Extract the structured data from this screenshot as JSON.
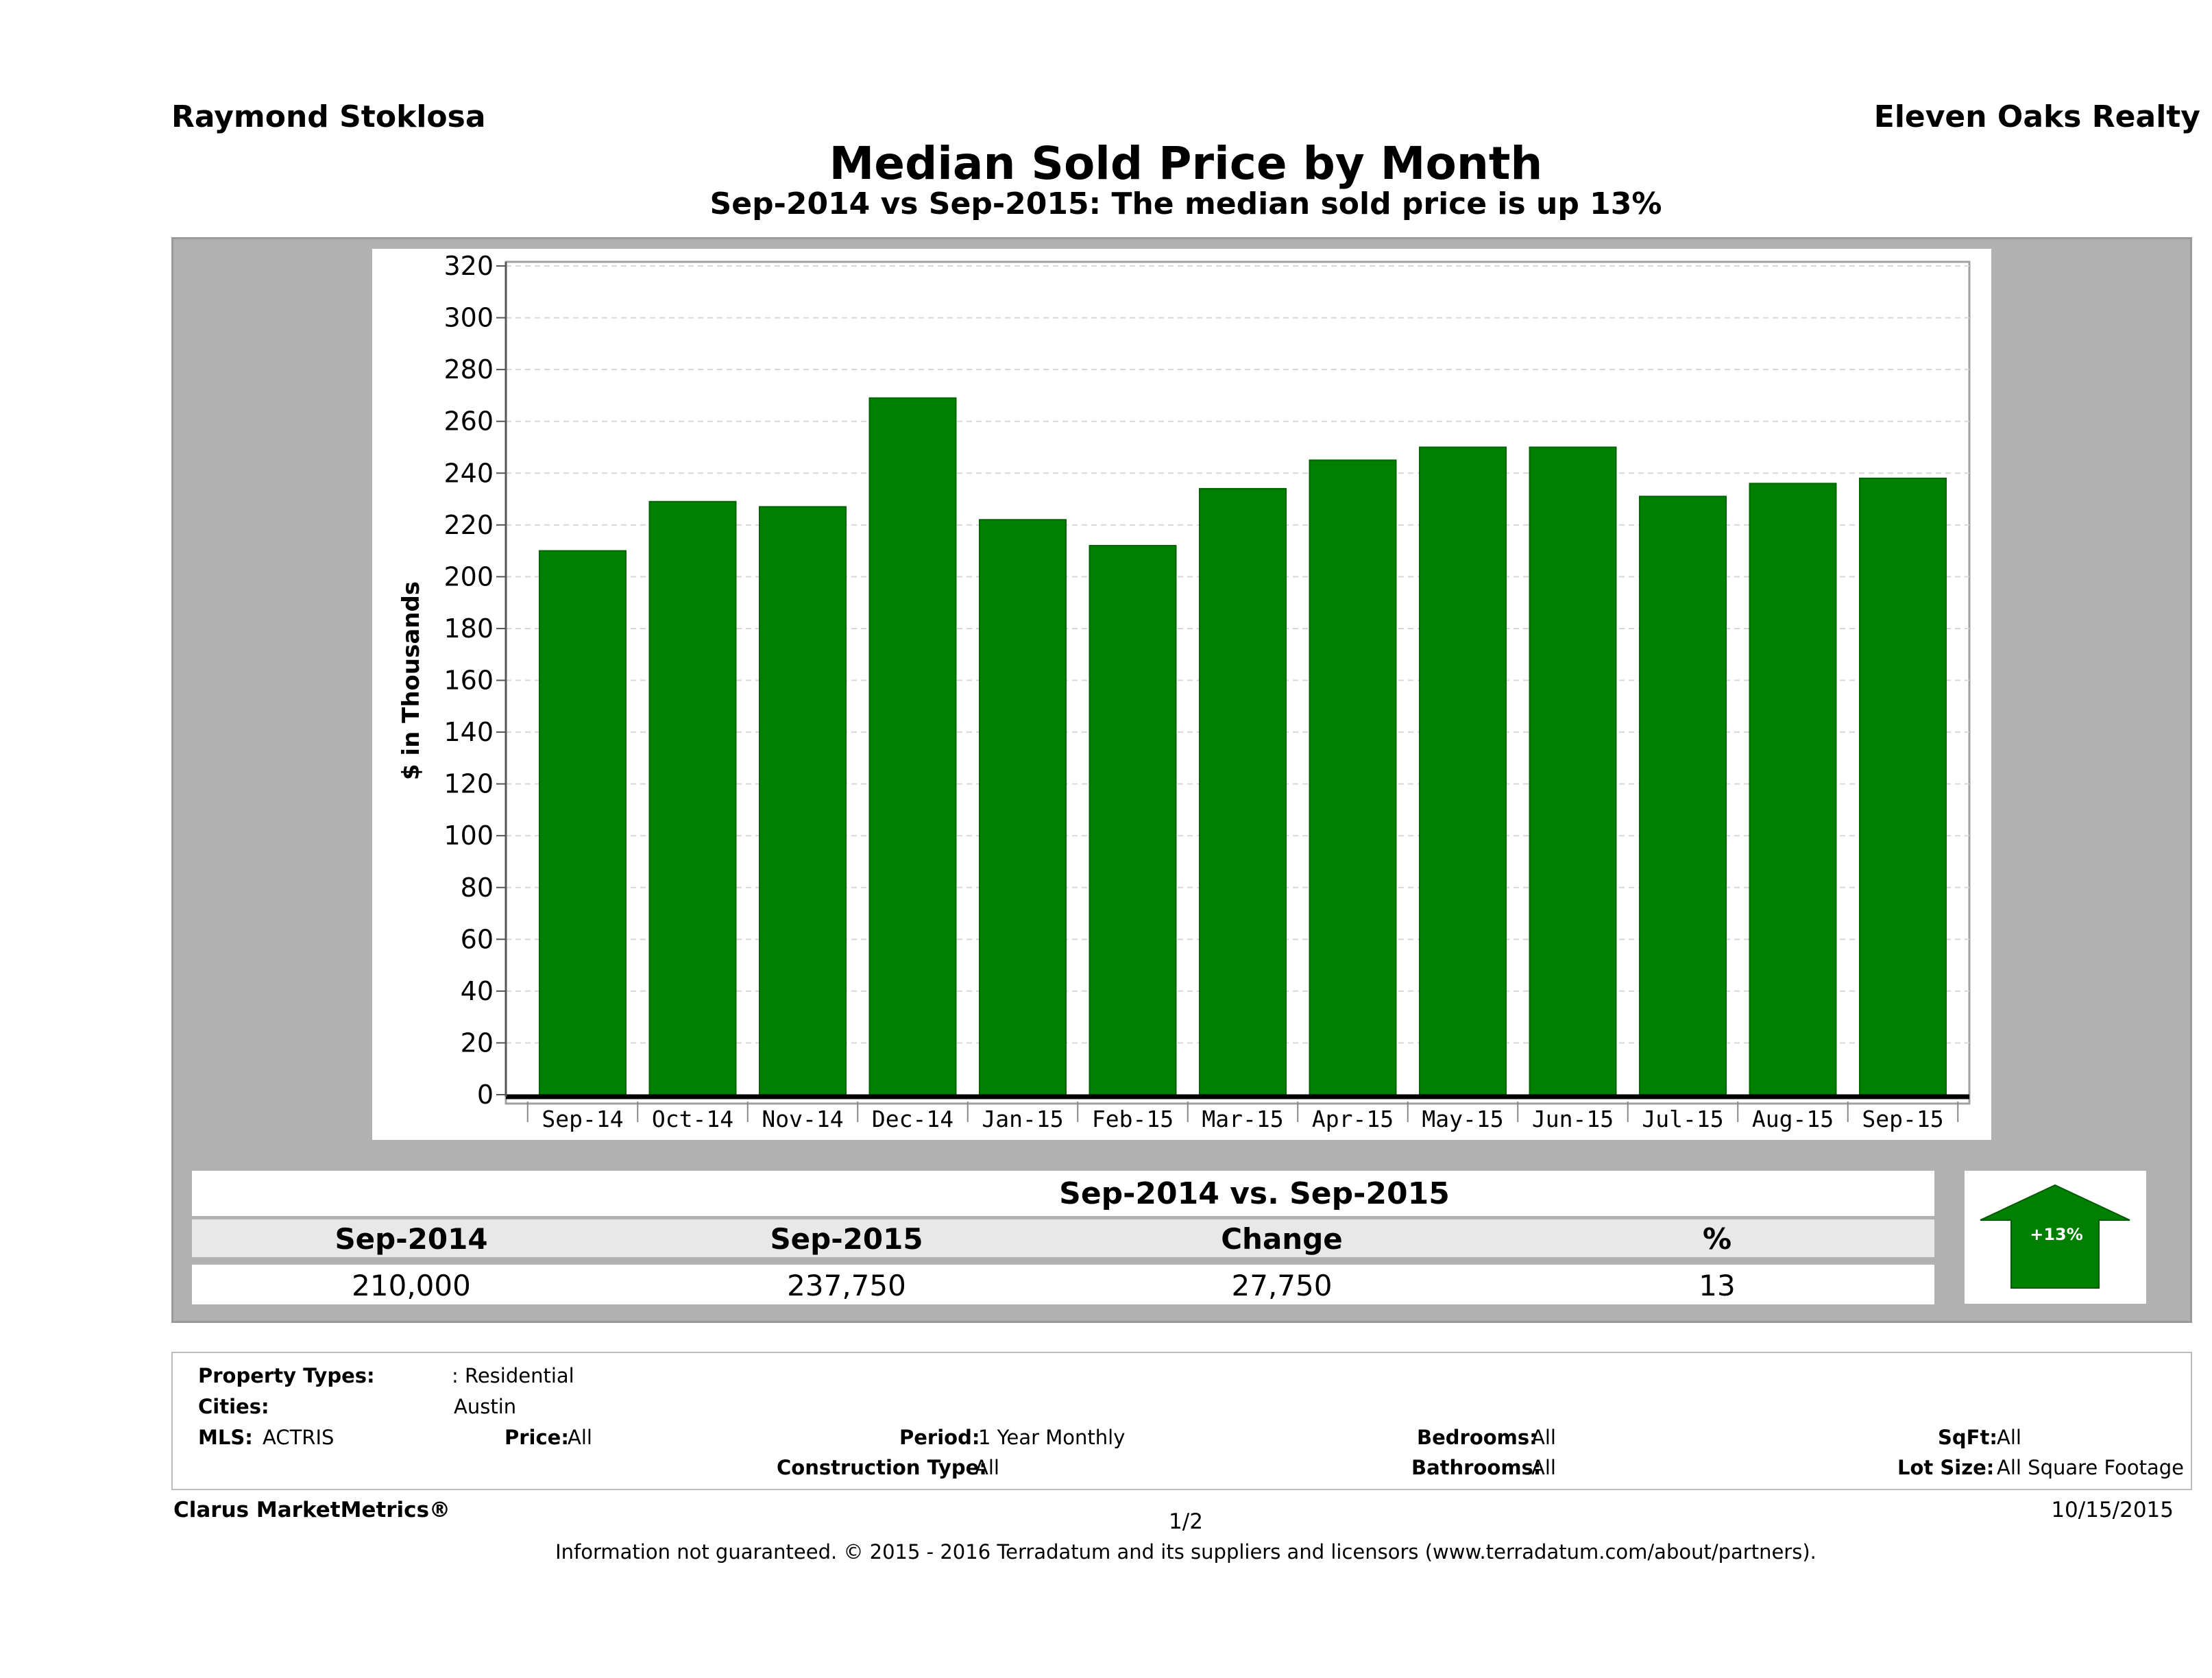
{
  "header": {
    "agent_name": "Raymond Stoklosa",
    "company": "Eleven Oaks Realty",
    "title": "Median Sold Price by Month",
    "subtitle": "Sep-2014 vs Sep-2015: The median sold price is up 13%"
  },
  "chart_data": {
    "type": "bar",
    "categories": [
      "Sep-14",
      "Oct-14",
      "Nov-14",
      "Dec-14",
      "Jan-15",
      "Feb-15",
      "Mar-15",
      "Apr-15",
      "May-15",
      "Jun-15",
      "Jul-15",
      "Aug-15",
      "Sep-15"
    ],
    "values": [
      210,
      229,
      227,
      269,
      222,
      212,
      234,
      245,
      250,
      250,
      231,
      236,
      238
    ],
    "ylabel": "$ in Thousands",
    "ylim": [
      0,
      320
    ],
    "yticks": [
      0,
      20,
      40,
      60,
      80,
      100,
      120,
      140,
      160,
      180,
      200,
      220,
      240,
      260,
      280,
      300,
      320
    ],
    "grid": true,
    "bar_color": "#008000"
  },
  "comparison": {
    "title": "Sep-2014 vs. Sep-2015",
    "headers": [
      "Sep-2014",
      "Sep-2015",
      "Change",
      "%"
    ],
    "values": [
      "210,000",
      "237,750",
      "27,750",
      "13"
    ],
    "badge": "+13%",
    "arrow_color": "#008000"
  },
  "criteria": {
    "property_types_label": "Property Types:",
    "property_types_value": ": Residential",
    "cities_label": "Cities:",
    "cities_value": "Austin",
    "mls_label": "MLS:",
    "mls_value": "ACTRIS",
    "price_label": "Price:",
    "price_value": "All",
    "period_label": "Period:",
    "period_value": "1 Year Monthly",
    "construction_label": "Construction Type:",
    "construction_value": "All",
    "bedrooms_label": "Bedrooms:",
    "bedrooms_value": "All",
    "bathrooms_label": "Bathrooms:",
    "bathrooms_value": "All",
    "sqft_label": "SqFt:",
    "sqft_value": "All",
    "lotsize_label": "Lot Size:",
    "lotsize_value": "All Square Footage"
  },
  "footer": {
    "brand": "Clarus MarketMetrics®",
    "page": "1/2",
    "date": "10/15/2015",
    "disclaimer": "Information not guaranteed. © 2015 - 2016 Terradatum and its suppliers and licensors (www.terradatum.com/about/partners)."
  }
}
